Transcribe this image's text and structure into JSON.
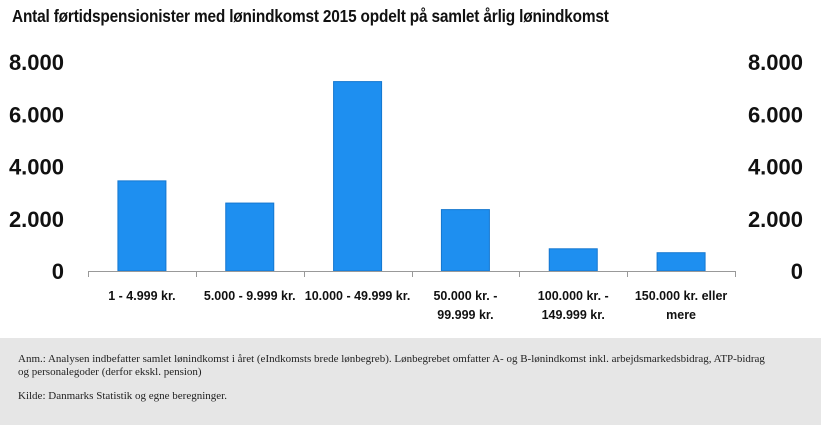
{
  "chart_data": {
    "type": "bar",
    "title": "Antal førtidspensionister med lønindkomst 2015 opdelt på samlet årlig lønindkomst",
    "categories": [
      [
        "1 - 4.999 kr."
      ],
      [
        "5.000 - 9.999 kr."
      ],
      [
        "10.000 - 49.999 kr."
      ],
      [
        "50.000 kr. -",
        "99.999 kr."
      ],
      [
        "100.000 kr. -",
        "149.999 kr."
      ],
      [
        "150.000 kr. eller",
        "mere"
      ]
    ],
    "values": [
      3450,
      2600,
      7250,
      2350,
      850,
      700
    ],
    "ylim": [
      0,
      8000
    ],
    "yticks": [
      0,
      2000,
      4000,
      6000,
      8000
    ],
    "ytick_labels": [
      "0",
      "2.000",
      "4.000",
      "6.000",
      "8.000"
    ],
    "xlabel": "",
    "ylabel": "",
    "grid": false,
    "colors": {
      "bar": "#1e8ff0",
      "bar_edge": "#1477d0",
      "axis": "#999999"
    }
  },
  "footer": {
    "note": "Anm.: Analysen indbefatter samlet lønindkomst i året (eIndkomsts brede lønbegreb). Lønbegrebet omfatter A- og B-lønindkomst inkl. arbejdsmarkedsbidrag, ATP-bidrag og personalegoder (derfor ekskl. pension)",
    "source": "Kilde: Danmarks Statistik og egne beregninger."
  }
}
